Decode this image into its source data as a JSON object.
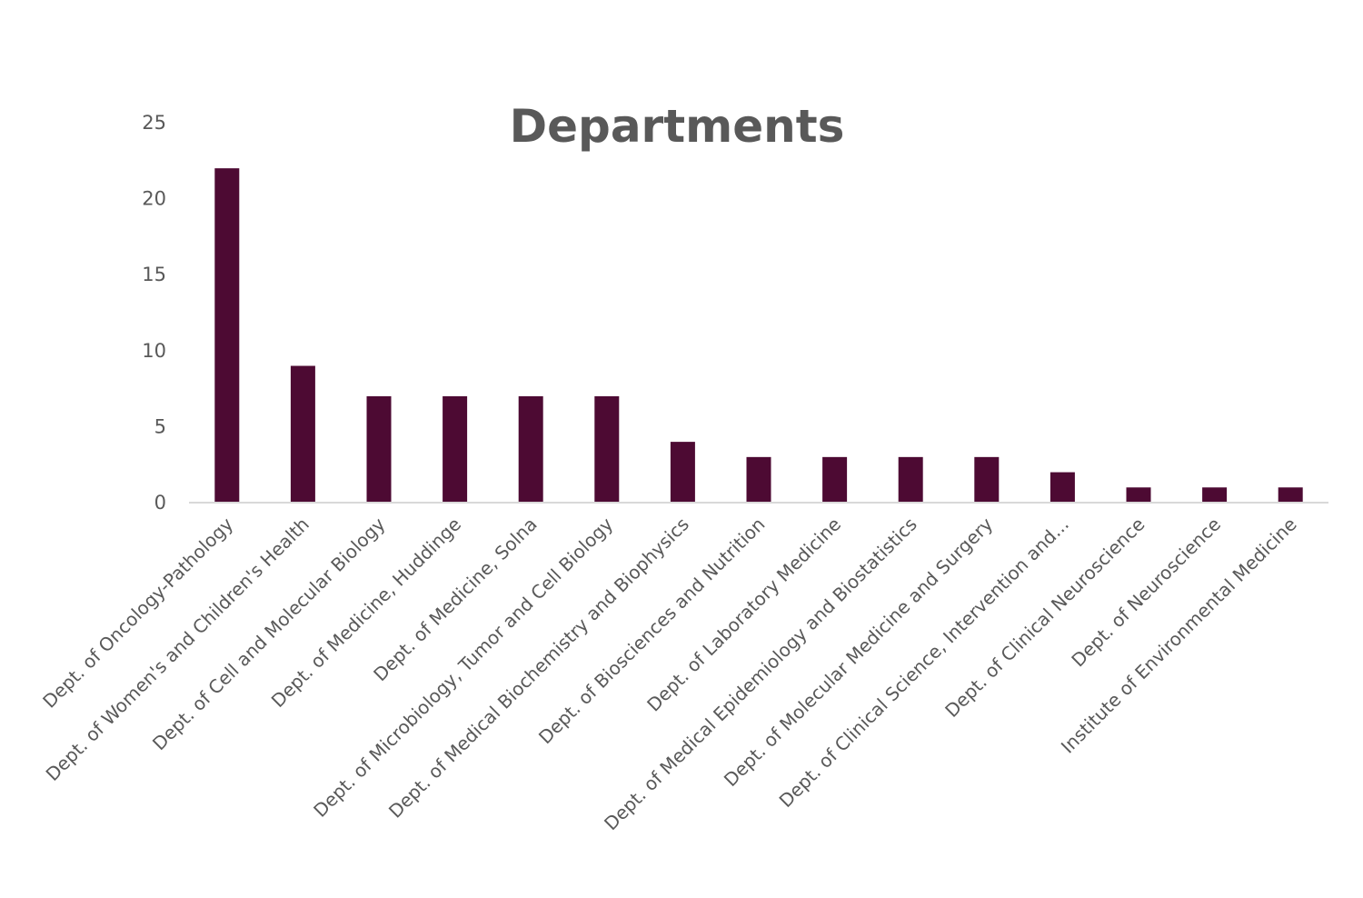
{
  "chart_data": {
    "type": "bar",
    "title": "Departments",
    "xlabel": "",
    "ylabel": "",
    "ylim": [
      0,
      25
    ],
    "yticks": [
      0,
      5,
      10,
      15,
      20,
      25
    ],
    "grid": false,
    "legend": "none",
    "bar_color": "#4d0a33",
    "categories": [
      "Dept. of Oncology-Pathology",
      "Dept. of Women's and Children's Health",
      "Dept. of Cell and Molecular Biology",
      "Dept. of Medicine, Huddinge",
      "Dept. of Medicine, Solna",
      "Dept. of Microbiology, Tumor and Cell Biology",
      "Dept. of Medical Biochemistry and Biophysics",
      "Dept. of Biosciences and Nutrition",
      "Dept. of Laboratory Medicine",
      "Dept. of Medical Epidemiology and Biostatistics",
      "Dept. of Molecular Medicine and Surgery",
      "Dept. of Clinical Science, Intervention and...",
      "Dept. of Clinical Neuroscience",
      "Dept. of Neuroscience",
      "Institute of Environmental Medicine"
    ],
    "values": [
      22,
      9,
      7,
      7,
      7,
      7,
      4,
      3,
      3,
      3,
      3,
      2,
      1,
      1,
      1
    ]
  }
}
